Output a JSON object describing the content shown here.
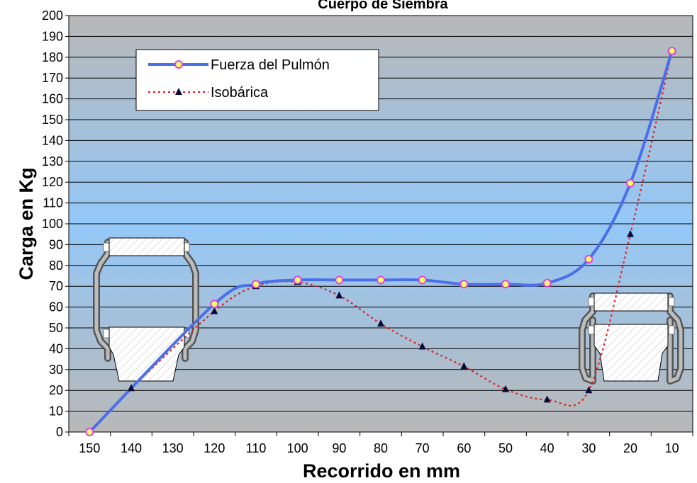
{
  "chart_data": {
    "type": "line",
    "title": "Cuerpo de Siembra",
    "xlabel": "Recorrido en mm",
    "ylabel": "Carga en Kg",
    "categories": [
      "150",
      "140",
      "130",
      "120",
      "110",
      "100",
      "90",
      "80",
      "70",
      "60",
      "50",
      "40",
      "30",
      "20",
      "10"
    ],
    "ylim": [
      0,
      200
    ],
    "ytick_step": 10,
    "grid": true,
    "legend_position": "top-left",
    "series": [
      {
        "name": "Fuerza del Pulmón",
        "color": "#4a6fe8",
        "marker_fill": "#ffff66",
        "marker_stroke": "#e040e0",
        "points": [
          {
            "x": 150,
            "y": 0
          },
          {
            "x": 120,
            "y": 61.5
          },
          {
            "x": 110,
            "y": 71
          },
          {
            "x": 100,
            "y": 73
          },
          {
            "x": 90,
            "y": 73
          },
          {
            "x": 80,
            "y": 73
          },
          {
            "x": 70,
            "y": 73
          },
          {
            "x": 60,
            "y": 71
          },
          {
            "x": 50,
            "y": 71
          },
          {
            "x": 40,
            "y": 71.5
          },
          {
            "x": 30,
            "y": 83
          },
          {
            "x": 20,
            "y": 119.5
          },
          {
            "x": 10,
            "y": 183
          }
        ]
      },
      {
        "name": "Isobárica",
        "color": "#e02020",
        "marker_color": "#0a0a3a",
        "points": [
          {
            "x": 150,
            "y": 0
          },
          {
            "x": 140,
            "y": 21
          },
          {
            "x": 120,
            "y": 58
          },
          {
            "x": 110,
            "y": 70
          },
          {
            "x": 100,
            "y": 72
          },
          {
            "x": 90,
            "y": 65.5
          },
          {
            "x": 80,
            "y": 52
          },
          {
            "x": 70,
            "y": 41
          },
          {
            "x": 60,
            "y": 31.5
          },
          {
            "x": 50,
            "y": 20.5
          },
          {
            "x": 40,
            "y": 15.5
          },
          {
            "x": 30,
            "y": 20
          },
          {
            "x": 20,
            "y": 95
          },
          {
            "x": 10,
            "y": 183
          }
        ]
      }
    ]
  },
  "colors": {
    "plot_top": "#b8b8b8",
    "plot_mid": "#94c8f8",
    "plot_bottom": "#b8b8b8"
  }
}
